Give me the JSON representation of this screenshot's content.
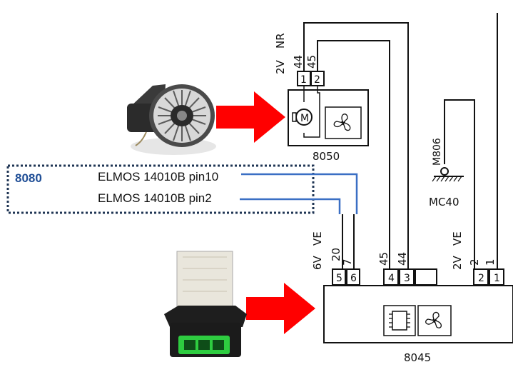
{
  "diagram": {
    "connector_top": {
      "voltage": "2V",
      "code": "NR",
      "wire_numbers": [
        "44",
        "45"
      ],
      "pins": [
        "1",
        "2"
      ]
    },
    "blower_unit_id": "8050",
    "ground": {
      "label": "M806",
      "connector": "MC40"
    },
    "overlay": {
      "id": "8080",
      "pin_labels": [
        "ELMOS 14010B pin10",
        "ELMOS 14010B pin2"
      ],
      "wire_color": "#3a6fc4",
      "id_color": "#1f4e96"
    },
    "connector_bottom_left": {
      "voltage": "6V",
      "code": "VE",
      "wire_numbers": [
        "20",
        "7",
        "45",
        "44"
      ],
      "pins": [
        "5",
        "6",
        "4",
        "3"
      ]
    },
    "connector_bottom_right": {
      "voltage": "2V",
      "code": "VE",
      "wire_numbers": [
        "2",
        "1"
      ],
      "pins": [
        "2",
        "1"
      ]
    },
    "module_id": "8045",
    "arrow_color": "#ff0000"
  }
}
